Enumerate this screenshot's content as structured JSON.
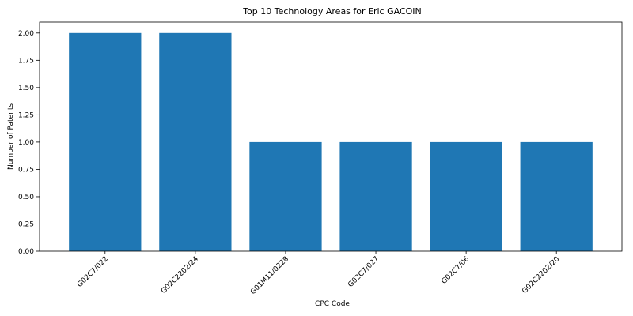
{
  "chart_data": {
    "type": "bar",
    "title": "Top 10 Technology Areas for Eric GACOIN",
    "xlabel": "CPC Code",
    "ylabel": "Number of Patents",
    "categories": [
      "G02C7/022",
      "G02C2202/24",
      "G01M11/0228",
      "G02C7/027",
      "G02C7/06",
      "G02C2202/20"
    ],
    "values": [
      2,
      2,
      1,
      1,
      1,
      1
    ],
    "ylim": [
      0,
      2.1
    ],
    "yticks": [
      "0.00",
      "0.25",
      "0.50",
      "0.75",
      "1.00",
      "1.25",
      "1.50",
      "1.75",
      "2.00"
    ],
    "bar_color": "#1f77b4",
    "grid": false,
    "legend": "none"
  }
}
